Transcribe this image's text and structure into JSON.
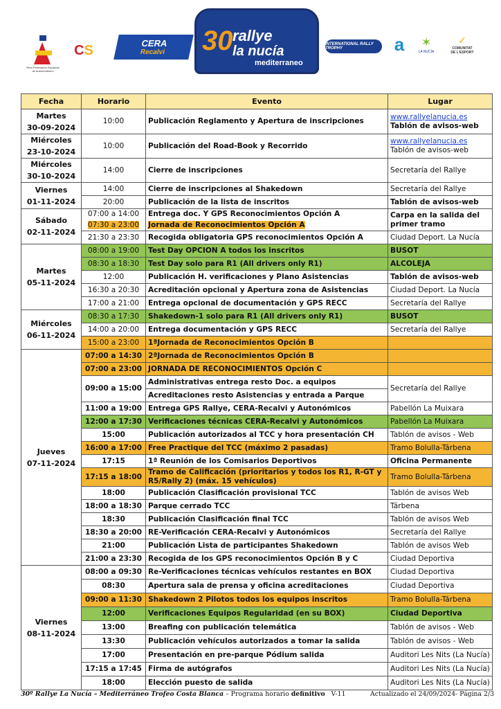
{
  "logos": {
    "rfeda": "Real Federación Española de Automovilismo",
    "csd": "Consejo Superior de Deportes",
    "cera": "CERA Recalvi",
    "plate": {
      "number": "30",
      "line1": "rallye",
      "line2": "la nucia",
      "line3": "mediterraneo",
      "dates": "7, 8 y 9 de noviembre de 2024"
    },
    "irt": "International Rally Trophy",
    "diputacion": "Diputación de Alicante",
    "lanucia": "LA NUCÍA Ciudad del Deporte",
    "comunitat": "Comunitat Valenciana COMUNITAT DE L'ESPORT"
  },
  "colors": {
    "header": "#fde9a6",
    "green": "#92c555",
    "orange": "#f4b532",
    "link": "#1a3fd6"
  },
  "table": {
    "headers": [
      "Fecha",
      "Horario",
      "Evento",
      "Lugar"
    ],
    "days": [
      {
        "date": [
          "Martes",
          "30-09-2024"
        ],
        "rows": [
          {
            "time": "10:00",
            "event": "Publicación Reglamento y Apertura de inscripciones",
            "place": [
              {
                "t": "www.rallyelanucia.es",
                "s": "link"
              },
              {
                "t": "Tablón de avisos-web",
                "s": "bold"
              }
            ],
            "h": 36
          }
        ]
      },
      {
        "date": [
          "Miércoles",
          "23-10-2024"
        ],
        "rows": [
          {
            "time": "10:00",
            "event": "Publicación del Road-Book y Recorrido",
            "place": [
              {
                "t": "www.rallyelanucia.es",
                "s": "link"
              },
              {
                "t": "Tablón de avisos-web",
                "s": ""
              }
            ],
            "h": 35
          }
        ]
      },
      {
        "date": [
          "Miércoles",
          "30-10-2024"
        ],
        "rows": [
          {
            "time": "14:00",
            "event": "Cierre de inscripciones",
            "place": [
              {
                "t": "Secretaría del Rallye",
                "s": ""
              }
            ],
            "h": 35
          }
        ]
      },
      {
        "date": [
          "Viernes",
          "01-11-2024"
        ],
        "rows": [
          {
            "time": "14:00",
            "event": "Cierre de inscripciones al Shakedown",
            "place": [
              {
                "t": "Secretaría del Rallye",
                "s": ""
              }
            ]
          },
          {
            "time": "20:00",
            "event": "Publicación de la lista de inscritos",
            "place": [
              {
                "t": "Tablón de avisos-web",
                "s": "bold"
              }
            ]
          }
        ]
      },
      {
        "date": [
          "Sábado",
          "02-11-2024"
        ],
        "rows": [
          {
            "time": "07:00 a 14:00",
            "event": "Entrega doc. Y GPS Reconocimientos Opción  A",
            "place": [
              {
                "t": "Carpa en la salida del primer tramo",
                "s": "bold"
              }
            ],
            "place_span": 2,
            "joined": "top",
            "h": 16
          },
          {
            "time": "07:30 a 23:00",
            "event": "Jornada de Reconocimientos Opción A",
            "text_hl": "orange",
            "joined": "bottom",
            "h": 16
          },
          {
            "time": "21:30 a 23:30",
            "event": "Recogida obligatoria GPS reconocimientos Opción A",
            "place": [
              {
                "t": "Ciudad Deport. La Nucía",
                "s": ""
              }
            ]
          }
        ]
      },
      {
        "date": [
          "Martes",
          "05-11-2024"
        ],
        "rows": [
          {
            "time": "08:00 a 19:00",
            "event": "Test Day OPCION A todos los inscritos",
            "place": [
              {
                "t": "BUSOT",
                "s": "bold"
              }
            ],
            "hl": "green"
          },
          {
            "time": "08:30 a 18:30",
            "event": "Test Day solo para R1 (All drivers only R1)",
            "place": [
              {
                "t": "ALCOLEJA",
                "s": "bold"
              }
            ],
            "hl": "green"
          },
          {
            "time": "12:00",
            "event": "Publicación H. verificaciones y Plano Asistencias",
            "place": [
              {
                "t": "Tablón de avisos-web",
                "s": "bold"
              }
            ]
          },
          {
            "time": "16:30 a 20:30",
            "event": "Acreditación opcional y Apertura zona de Asistencias",
            "place": [
              {
                "t": "Ciudad Deport. La Nucía",
                "s": ""
              }
            ]
          },
          {
            "time": "17:00 a 21:00",
            "event": "Entrega opcional de documentación y GPS RECC",
            "place": [
              {
                "t": "Secretaría del Rallye",
                "s": ""
              }
            ]
          }
        ]
      },
      {
        "date": [
          "Miércoles",
          "06-11-2024"
        ],
        "rows": [
          {
            "time": "08:30 a 17:30",
            "event": "Shakedown-1 solo para R1 (All drivers only R1)",
            "place": [
              {
                "t": "BUSOT",
                "s": "bold"
              }
            ],
            "hl": "green"
          },
          {
            "time": "14:00 a 20:00",
            "event": "Entrega documentación y GPS RECC",
            "place": [
              {
                "t": "Secretaría del Rallye",
                "s": ""
              }
            ]
          },
          {
            "time": "15:00 a 23:00",
            "event": "1ªJornada de Reconocimientos Opción B",
            "place": [],
            "hl": "orange"
          }
        ]
      },
      {
        "date": [
          "Jueves",
          "07-11-2024"
        ],
        "rows": [
          {
            "time": "07:00 a 14:30",
            "event": "2ªJornada de Reconocimientos Opción B",
            "place": [],
            "hl": "orange"
          },
          {
            "time": "07:00 a 23:00",
            "event": "JORNADA DE RECONOCIMIENTOS Opción C",
            "place": [],
            "hl": "orange"
          },
          {
            "time": "09:00 a 15:00",
            "event": "Administrativas entrega resto Doc. a equipos",
            "place": [
              {
                "t": "Secretaría del Rallye",
                "s": ""
              }
            ],
            "time_span": 2,
            "place_span": 2,
            "bt": true
          },
          {
            "event": "Acreditaciones resto Asistencias y entrada a Parque"
          },
          {
            "time": "11:00 a 19:00",
            "event": "Entrega GPS Rallye, CERA-Recalvi y Autonómicos",
            "place": [
              {
                "t": "Pabellón La Muixara",
                "s": ""
              }
            ],
            "bt": true
          },
          {
            "time": "12:00 a 17:30",
            "event": "Verificaciones técnicas  CERA-Recalvi y Autonómicos",
            "place": [
              {
                "t": "Pabellón La Muixara",
                "s": ""
              }
            ],
            "hl": "green",
            "bt": true
          },
          {
            "time": "15:00",
            "event": "Publicación autorizados al TCC y hora presentación CH",
            "place": [
              {
                "t": "Tablón de avisos - Web",
                "s": ""
              }
            ],
            "bt": true
          },
          {
            "time": "16:00 a 17:00",
            "event": "Free Practique del TCC (máximo 2 pasadas)",
            "place": [
              {
                "t": "Tramo Bolulla-Tárbena",
                "s": ""
              }
            ],
            "hl": "orange",
            "bt": true
          },
          {
            "time": "17:15",
            "event": "1ª Reunión de los Comisarios Deportivos",
            "place": [
              {
                "t": "Oficina Permanente",
                "s": "bold"
              }
            ],
            "bt": true
          },
          {
            "time": "17:15 a 18:00",
            "event": "Tramo de Calificación (prioritarios y todos los R1, R-GT y R5/Rally 2) (máx. 15 vehículos)",
            "place": [
              {
                "t": "Tramo Bolulla-Tárbena",
                "s": ""
              }
            ],
            "hl": "orange",
            "bt": true,
            "h": 26
          },
          {
            "time": "18:00",
            "event": "Publicación Clasificación provisional TCC",
            "place": [
              {
                "t": "Tablón de avisos Web",
                "s": ""
              }
            ],
            "bt": true
          },
          {
            "time": "18:00 a 18:30",
            "event": "Parque cerrado TCC",
            "place": [
              {
                "t": "Tárbena",
                "s": ""
              }
            ],
            "bt": true
          },
          {
            "time": "18:30",
            "event": "Publicación Clasificación final TCC",
            "place": [
              {
                "t": "Tablón de avisos Web",
                "s": ""
              }
            ],
            "bt": true
          },
          {
            "time": "18:30 a 20:00",
            "event": "RE-Verificación CERA-Recalvi y Autonómicos",
            "place": [
              {
                "t": "Secretaría del Rallye",
                "s": ""
              }
            ],
            "bt": true
          },
          {
            "time": "21:00",
            "event": "Publicación Lista de participantes Shakedown",
            "place": [
              {
                "t": "Tablón de avisos Web",
                "s": ""
              }
            ],
            "bt": true
          },
          {
            "time": "21:00 a 23:30",
            "event": "Recogida de los GPS reconocimientos Opción B y C",
            "place": [
              {
                "t": "Ciudad Deportiva",
                "s": ""
              }
            ],
            "bt": true
          }
        ]
      },
      {
        "date": [
          "Viernes",
          "08-11-2024"
        ],
        "rows": [
          {
            "time": "08:00 a 09:30",
            "event": "Re-Verificaciones técnicas vehículos restantes en BOX",
            "place": [
              {
                "t": "Ciudad Deportiva",
                "s": ""
              }
            ],
            "bt": true,
            "h": 20
          },
          {
            "time": "08:30",
            "event": "Apertura sala de prensa y oficina acreditaciones",
            "place": [
              {
                "t": "Ciudad Deportiva",
                "s": ""
              }
            ],
            "bt": true,
            "h": 20
          },
          {
            "time": "09:00 a 11:30",
            "event": "Shakedown 2 Pilotos todos los equipos inscritos",
            "place": [
              {
                "t": "Tramo Bolulla-Tárbena",
                "s": ""
              }
            ],
            "hl": "orange",
            "bt": true,
            "h": 20
          },
          {
            "time": "12:00",
            "event": "Verificaciones Equipos Regularidad (en su BOX)",
            "place": [
              {
                "t": "Ciudad Deportiva",
                "s": "bold"
              }
            ],
            "hl": "green",
            "bt": true,
            "h": 20
          },
          {
            "time": "13:00",
            "event": "Breafing con publicación telemática",
            "place": [
              {
                "t": "Tablón de avisos - Web",
                "s": ""
              }
            ],
            "bt": true,
            "h": 20
          },
          {
            "time": "13:30",
            "event": "Publicación vehículos autorizados a tomar la salida",
            "place": [
              {
                "t": "Tablón de avisos - Web",
                "s": ""
              }
            ],
            "bt": true,
            "h": 20
          },
          {
            "time": "17:00",
            "event": "Presentación en pre-parque Pódium salida",
            "place": [
              {
                "t": "Auditori Les Nits (La Nucía)",
                "s": ""
              }
            ],
            "bt": true,
            "h": 20
          },
          {
            "time": "17:15 a 17:45",
            "event": "Firma de autógrafos",
            "place": [
              {
                "t": "Auditori Les Nits (La Nucía)",
                "s": ""
              }
            ],
            "bt": true,
            "h": 20
          },
          {
            "time": "18:00",
            "event": "Elección puesto de salida",
            "place": [
              {
                "t": "Auditori Les Nits (La Nucía)",
                "s": ""
              }
            ],
            "bt": true,
            "h": 20
          }
        ]
      }
    ]
  },
  "footer": {
    "title_italic": "30º Rallye La Nucía – Mediterráneo Trofeo Costa Blanca",
    "sep": " – Programa horario ",
    "definitivo": "definitivo",
    "version": "   V-11",
    "right": "Actualizado el 24/09/2024- Página 2/3"
  }
}
